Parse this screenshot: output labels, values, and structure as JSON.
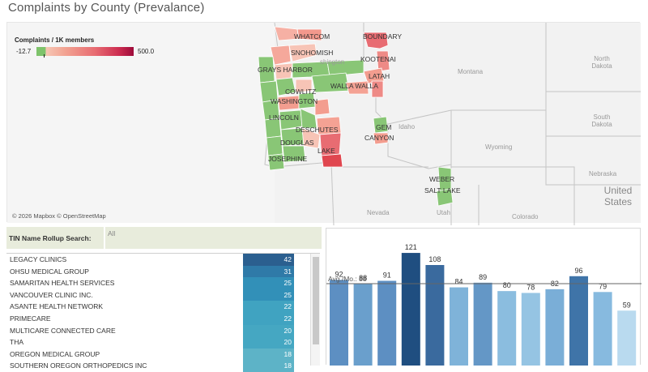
{
  "page": {
    "title": "Complaints by County (Prevalance)"
  },
  "map": {
    "legend": {
      "title": "Complaints / 1K members",
      "min": "-12.7",
      "max": "500.0"
    },
    "county_labels": [
      {
        "name": "WHATCOM"
      },
      {
        "name": "BOUNDARY"
      },
      {
        "name": "SNOHOMISH"
      },
      {
        "name": "KOOTENAI"
      },
      {
        "name": "GRAYS HARBOR"
      },
      {
        "name": "LATAH"
      },
      {
        "name": "WALLA WALLA"
      },
      {
        "name": "COWLITZ"
      },
      {
        "name": "WASHINGTON"
      },
      {
        "name": "LINCOLN"
      },
      {
        "name": "GEM"
      },
      {
        "name": "DESCHUTES"
      },
      {
        "name": "CANYON"
      },
      {
        "name": "DOUGLAS"
      },
      {
        "name": "LAKE"
      },
      {
        "name": "JOSEPHINE"
      },
      {
        "name": "WEBER"
      },
      {
        "name": "SALT LAKE"
      }
    ],
    "state_labels": [
      {
        "name": "Montana"
      },
      {
        "name": "North Dakota"
      },
      {
        "name": "Idaho"
      },
      {
        "name": "South Dakota"
      },
      {
        "name": "Wyoming"
      },
      {
        "name": "Nebraska"
      },
      {
        "name": "United States"
      },
      {
        "name": "Nevada"
      },
      {
        "name": "Utah"
      },
      {
        "name": "Colorado"
      },
      {
        "name": "shington"
      }
    ],
    "attribution": "© 2026 Mapbox © OpenStreetMap",
    "colors": {
      "low": "#7ec36b",
      "high": "#9d0b3a",
      "land": "#f2f2f2",
      "border": "#c9c9c9"
    }
  },
  "search": {
    "label": "TIN Name Rollup Search:",
    "value": "All"
  },
  "table": {
    "rows": [
      {
        "name": "LEGACY CLINICS",
        "value": "42"
      },
      {
        "name": "OHSU MEDICAL GROUP",
        "value": "31"
      },
      {
        "name": "SAMARITAN HEALTH SERVICES",
        "value": "25"
      },
      {
        "name": "VANCOUVER CLINIC INC.",
        "value": "25"
      },
      {
        "name": "ASANTE HEALTH NETWORK",
        "value": "22"
      },
      {
        "name": "PRIMECARE",
        "value": "22"
      },
      {
        "name": "MULTICARE CONNECTED CARE",
        "value": "20"
      },
      {
        "name": "THA",
        "value": "20"
      },
      {
        "name": "OREGON MEDICAL GROUP",
        "value": "18"
      },
      {
        "name": "SOUTHERN OREGON ORTHOPEDICS INC",
        "value": "18"
      }
    ]
  },
  "chart_data": {
    "type": "bar",
    "values": [
      92,
      88,
      91,
      121,
      108,
      84,
      89,
      80,
      78,
      82,
      96,
      79,
      59
    ],
    "colors": [
      "#5d8fc2",
      "#6a9fcc",
      "#5d8fc2",
      "#1f4e80",
      "#3a6a9e",
      "#7fb3d9",
      "#6497c6",
      "#8bbddf",
      "#95c4e3",
      "#7aaed7",
      "#3f74a8",
      "#87badf",
      "#b9daef"
    ],
    "reference_line": {
      "label": "Avg./Mo.: 88",
      "value": 88
    },
    "ylim": [
      0,
      135
    ]
  }
}
